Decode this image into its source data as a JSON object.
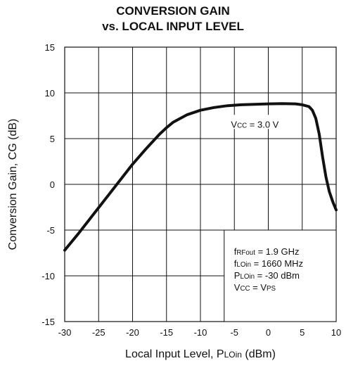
{
  "chart_data": {
    "type": "line",
    "title": [
      "CONVERSION GAIN",
      "vs. LOCAL INPUT LEVEL"
    ],
    "xlabel": {
      "main": "Local Input Level, P",
      "sub": "LOin",
      "unit": " (dBm)"
    },
    "ylabel": "Conversion Gain, CG (dB)",
    "xlim": [
      -30,
      10
    ],
    "ylim": [
      -15,
      15
    ],
    "x_ticks": [
      -30,
      -25,
      -20,
      -15,
      -10,
      -5,
      0,
      5,
      10
    ],
    "y_ticks": [
      15,
      10,
      5,
      0,
      -5,
      -10,
      -15
    ],
    "grid": true,
    "series": [
      {
        "x": [
          -30,
          -28,
          -26,
          -24,
          -22,
          -20,
          -18,
          -16,
          -15,
          -14,
          -12,
          -10,
          -8,
          -6,
          -4,
          -2,
          0,
          2,
          4,
          5,
          6,
          6.5,
          7,
          7.5,
          8,
          8.5,
          9,
          9.5,
          10
        ],
        "y": [
          -7.2,
          -5.4,
          -3.5,
          -1.6,
          0.3,
          2.2,
          3.9,
          5.5,
          6.2,
          6.8,
          7.6,
          8.1,
          8.4,
          8.6,
          8.7,
          8.75,
          8.8,
          8.82,
          8.8,
          8.7,
          8.5,
          8.1,
          7.2,
          5.5,
          3.0,
          0.8,
          -0.8,
          -1.9,
          -2.8
        ]
      }
    ],
    "annotations": {
      "vcc_label": {
        "pre": "V",
        "sub": "CC",
        "post": " = 3.0 V"
      },
      "conditions": [
        {
          "pre": "f",
          "sub": "RFout",
          "post": " = 1.9 GHz"
        },
        {
          "pre": "f",
          "sub": "LOin",
          "post": " =  1660 MHz"
        },
        {
          "pre": "P",
          "sub": "LOin",
          "post": " = -30 dBm"
        },
        {
          "pre": "V",
          "sub": "CC",
          "post": " = V",
          "sub2": "PS"
        }
      ]
    }
  }
}
